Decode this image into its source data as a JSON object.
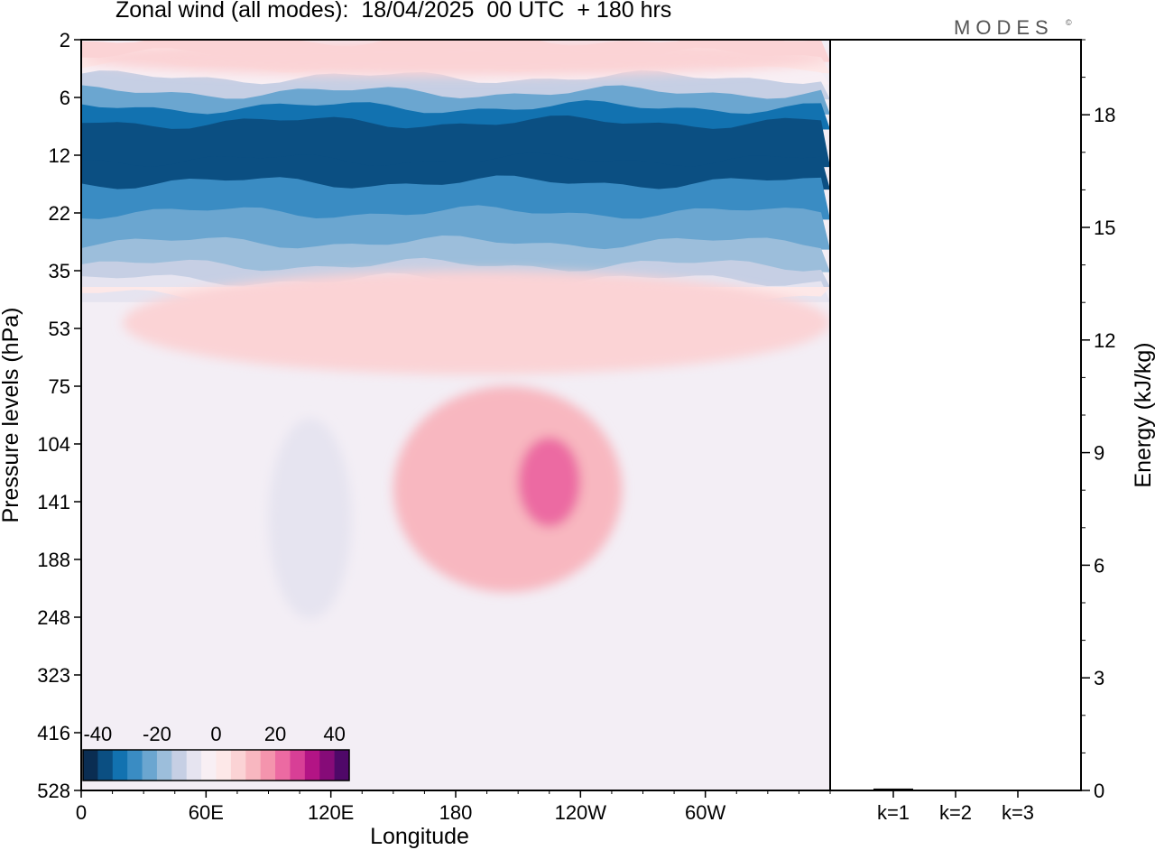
{
  "header": {
    "title": "Zonal wind (all modes):  18/04/2025  00 UTC  + 180 hrs",
    "brand": "MODES",
    "brand_mark": "©"
  },
  "colors": {
    "scale": [
      "#0a2d52",
      "#0b4f82",
      "#1272b0",
      "#3a8cc3",
      "#6ba6d0",
      "#9cbedb",
      "#c6cfe4",
      "#e6e4f0",
      "#f8eff4",
      "#fde8e8",
      "#fbd3d5",
      "#f8b7c0",
      "#f494ad",
      "#ec6aa2",
      "#d83f96",
      "#b31485",
      "#860b78",
      "#4f0868"
    ],
    "background_field": "#f3eef5"
  },
  "chart_data": [
    {
      "type": "heatmap",
      "title": "Zonal wind (all modes):  18/04/2025  00 UTC  + 180 hrs",
      "xlabel": "Longitude",
      "ylabel": "Pressure levels (hPa)",
      "x_ticks": [
        "0",
        "60E",
        "120E",
        "180",
        "120W",
        "60W"
      ],
      "x_tick_values": [
        0,
        60,
        120,
        180,
        240,
        300
      ],
      "xlim": [
        0,
        360
      ],
      "y_ticks": [
        "2",
        "6",
        "12",
        "22",
        "35",
        "53",
        "75",
        "104",
        "141",
        "188",
        "248",
        "323",
        "416",
        "528"
      ],
      "colorbar": {
        "labels": [
          "-40",
          "-20",
          "0",
          "20",
          "40"
        ],
        "label_values": [
          -40,
          -20,
          0,
          20,
          40
        ],
        "range": [
          -45,
          45
        ],
        "levels": 18
      },
      "features": [
        {
          "level_range": [
            "2",
            "4"
          ],
          "lon_range": [
            0,
            360
          ],
          "value": 8
        },
        {
          "level_range": [
            "5",
            "14"
          ],
          "lon_range": [
            0,
            360
          ],
          "value": -38
        },
        {
          "level_range": [
            "14",
            "30"
          ],
          "lon_range": [
            0,
            360
          ],
          "value": -22
        },
        {
          "level_range": [
            "35",
            "70"
          ],
          "lon_range": [
            20,
            360
          ],
          "value": 6
        },
        {
          "level_range": [
            "75",
            "220"
          ],
          "lon_range": [
            150,
            260
          ],
          "value": 12
        },
        {
          "level_range": [
            "100",
            "160"
          ],
          "lon_range": [
            210,
            240
          ],
          "value": 20
        },
        {
          "level_range": [
            "90",
            "250"
          ],
          "lon_range": [
            90,
            130
          ],
          "value": -8
        }
      ]
    },
    {
      "type": "bar",
      "categories": [
        "k=1",
        "k=2",
        "k=3"
      ],
      "values": [
        0.05,
        0.02,
        0.02
      ],
      "ylabel": "Energy (kJ/kg)",
      "ylim": [
        0,
        20
      ],
      "y_ticks": [
        "0",
        "3",
        "6",
        "9",
        "12",
        "15",
        "18"
      ],
      "y_tick_values": [
        0,
        3,
        6,
        9,
        12,
        15,
        18
      ]
    }
  ]
}
